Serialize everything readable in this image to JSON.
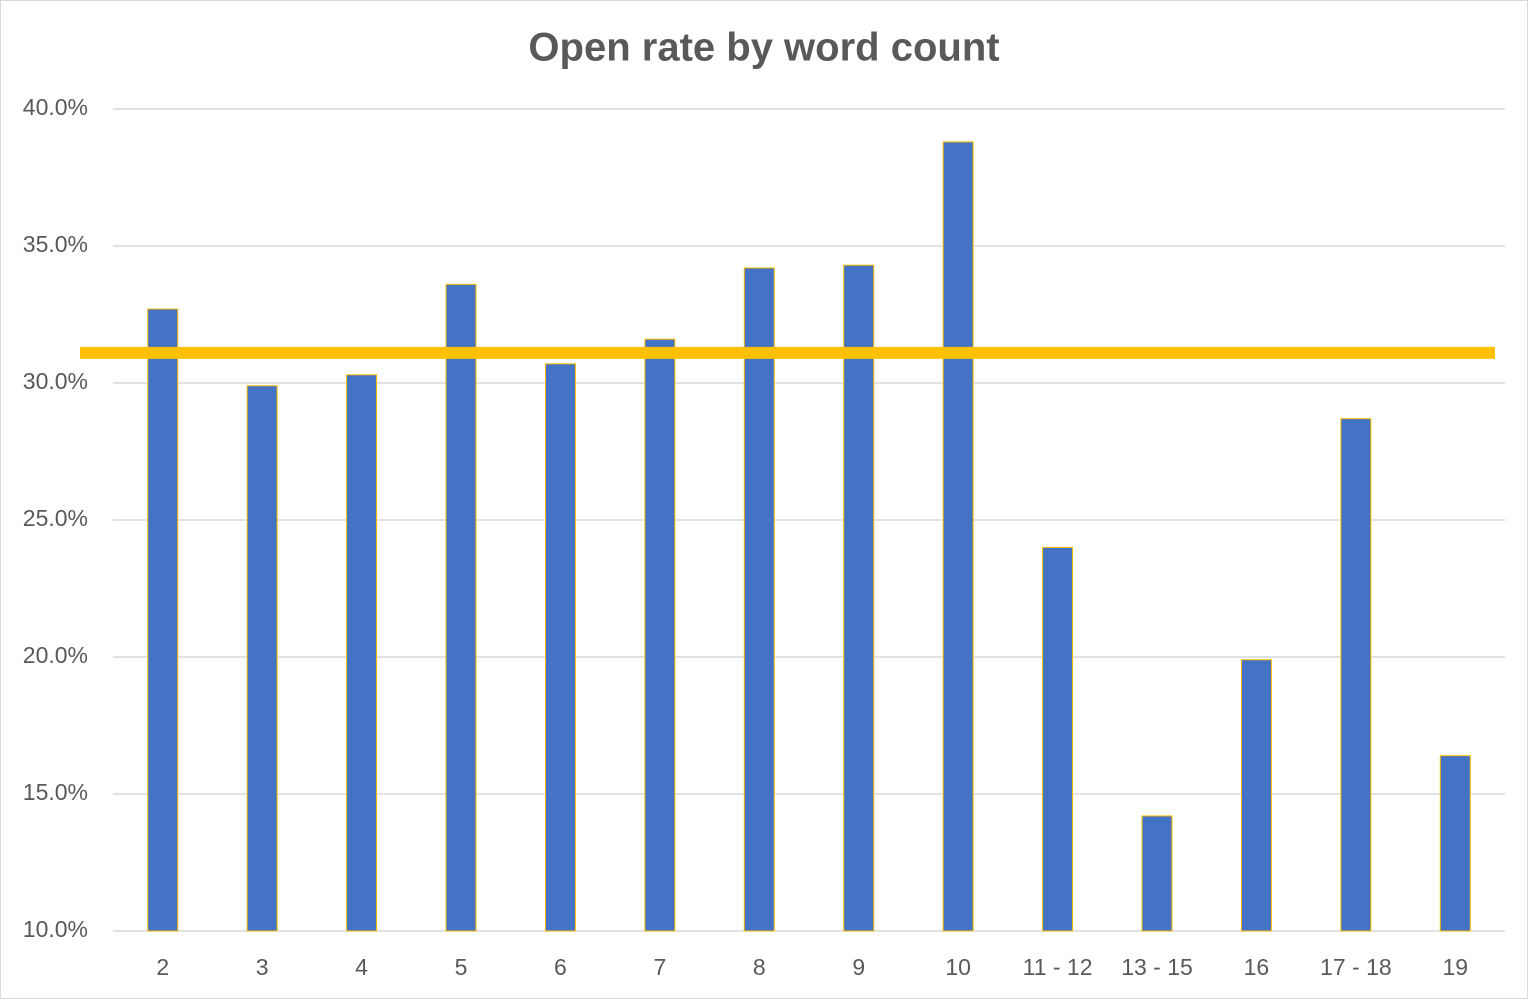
{
  "chart_data": {
    "type": "bar",
    "title": "Open rate by word count",
    "categories": [
      "2",
      "3",
      "4",
      "5",
      "6",
      "7",
      "8",
      "9",
      "10",
      "11 - 12",
      "13 - 15",
      "16",
      "17 - 18",
      "19"
    ],
    "values": [
      32.7,
      29.9,
      30.3,
      33.6,
      30.7,
      31.6,
      34.2,
      34.3,
      38.8,
      24.0,
      14.2,
      19.9,
      28.7,
      16.4
    ],
    "color": "#4472c4",
    "edge_color": "#ffc000",
    "reference_line": {
      "value": 31.1,
      "color": "#ffc000"
    },
    "ylim": [
      10,
      40
    ],
    "yticks": [
      {
        "value": 10,
        "label": "10.0%"
      },
      {
        "value": 15,
        "label": "15.0%"
      },
      {
        "value": 20,
        "label": "20.0%"
      },
      {
        "value": 25,
        "label": "25.0%"
      },
      {
        "value": 30,
        "label": "30.0%"
      },
      {
        "value": 35,
        "label": "35.0%"
      },
      {
        "value": 40,
        "label": "40.0%"
      }
    ],
    "grid": true
  }
}
